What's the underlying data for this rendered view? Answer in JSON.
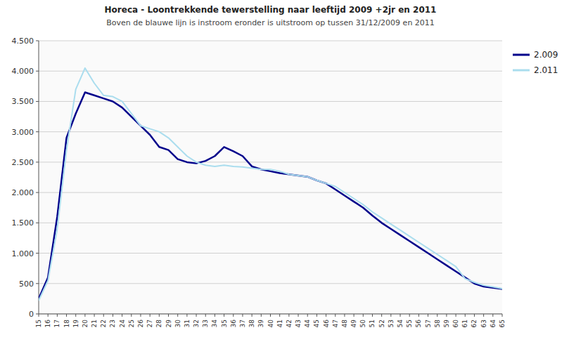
{
  "chart_data": {
    "type": "line",
    "title": "Horeca - Loontrekkende tewerstelling naar leeftijd 2009 +2jr en 2011",
    "subtitle": "Boven de blauwe lijn is instroom eronder is uitstroom op tussen 31/12/2009 en 2011",
    "x": [
      15,
      16,
      17,
      18,
      19,
      20,
      21,
      22,
      23,
      24,
      25,
      26,
      27,
      28,
      29,
      30,
      31,
      32,
      33,
      34,
      35,
      36,
      37,
      38,
      39,
      40,
      41,
      42,
      43,
      44,
      45,
      46,
      47,
      48,
      49,
      50,
      51,
      52,
      53,
      54,
      55,
      56,
      57,
      58,
      59,
      60,
      61,
      62,
      63,
      64,
      65
    ],
    "series": [
      {
        "name": "2.009",
        "color": "#00008B",
        "values": [
          250,
          600,
          1600,
          2900,
          3300,
          3650,
          3600,
          3550,
          3500,
          3400,
          3250,
          3100,
          2950,
          2750,
          2700,
          2550,
          2500,
          2480,
          2520,
          2600,
          2750,
          2680,
          2600,
          2430,
          2380,
          2350,
          2320,
          2300,
          2280,
          2260,
          2200,
          2150,
          2050,
          1950,
          1850,
          1750,
          1620,
          1500,
          1400,
          1300,
          1200,
          1100,
          1000,
          900,
          800,
          700,
          600,
          500,
          450,
          430,
          410
        ]
      },
      {
        "name": "2.011",
        "color": "#aaddee",
        "values": [
          220,
          550,
          1400,
          2700,
          3700,
          4050,
          3800,
          3600,
          3580,
          3500,
          3300,
          3100,
          3050,
          3000,
          2900,
          2750,
          2600,
          2500,
          2450,
          2430,
          2450,
          2430,
          2420,
          2400,
          2380,
          2380,
          2350,
          2300,
          2280,
          2260,
          2200,
          2150,
          2100,
          2000,
          1900,
          1800,
          1680,
          1580,
          1480,
          1380,
          1280,
          1180,
          1080,
          980,
          880,
          780,
          580,
          520,
          470,
          445,
          415
        ]
      }
    ],
    "xlim": [
      15,
      65
    ],
    "xticks": [
      15,
      16,
      17,
      18,
      19,
      20,
      21,
      22,
      23,
      24,
      25,
      26,
      27,
      28,
      29,
      30,
      31,
      32,
      33,
      34,
      35,
      36,
      37,
      38,
      39,
      40,
      41,
      42,
      43,
      44,
      45,
      46,
      47,
      48,
      49,
      50,
      51,
      52,
      53,
      54,
      55,
      56,
      57,
      58,
      59,
      60,
      61,
      62,
      63,
      64,
      65
    ],
    "ylim": [
      0,
      4500
    ],
    "yticks": [
      0,
      500,
      {
        "value": 1000,
        "label": "1.000"
      },
      {
        "value": 1500,
        "label": "1.500"
      },
      {
        "value": 2000,
        "label": "2.000"
      },
      {
        "value": 2500,
        "label": "2.500"
      },
      {
        "value": 3000,
        "label": "3.000"
      },
      {
        "value": 3500,
        "label": "3.500"
      },
      {
        "value": 4000,
        "label": "4.000"
      },
      {
        "value": 4500,
        "label": "4.500"
      }
    ],
    "grid": "y",
    "legend": "right"
  }
}
